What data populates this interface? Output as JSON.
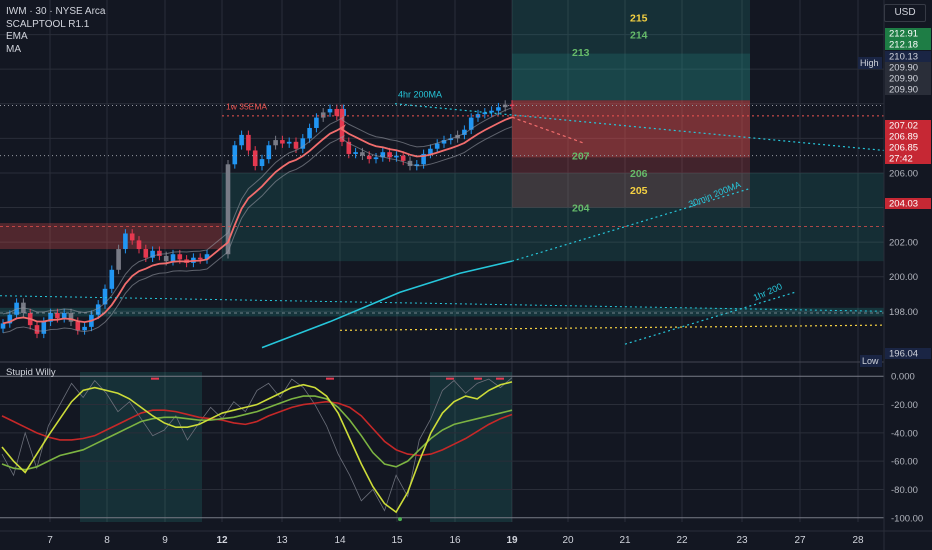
{
  "header": {
    "symbol_line": "IWM · 30 · NYSE Arca",
    "indicators": [
      "SCALPTOOL R1.1",
      "EMA",
      "MA"
    ],
    "currency_label": "USD"
  },
  "sub_panel": {
    "title": "Stupid Willy"
  },
  "colors": {
    "background": "#131722",
    "bull": "#2196f3",
    "bear": "#e53950",
    "neutral": "#787b86",
    "ema": "#f26d6d",
    "ma_cyan": "#26c6da",
    "zone_green": "#26a69a",
    "zone_red": "#ef5350",
    "osc_red": "#c62828",
    "osc_green": "#7cb342",
    "osc_lime": "#cddc39"
  },
  "chart_data": [
    {
      "type": "candlestick",
      "title": "IWM · 30 · NYSE Arca",
      "x_tick_labels": [
        "7",
        "8",
        "9",
        "12",
        "13",
        "14",
        "15",
        "16",
        "19",
        "20",
        "21",
        "22",
        "23",
        "27",
        "28"
      ],
      "y_tick_labels": [
        "198.00",
        "200.00",
        "202.00",
        "206.00"
      ],
      "ylim": [
        195.3,
        216.0
      ],
      "grid": true,
      "price_scale_labels": [
        {
          "text": "212.91",
          "value": 212.91,
          "style": "green"
        },
        {
          "text": "212.18",
          "value": 212.18,
          "style": "green"
        },
        {
          "text": "High",
          "value": 210.13,
          "style": "tag"
        },
        {
          "text": "210.13",
          "value": 210.13,
          "style": "navy"
        },
        {
          "text": "209.90",
          "value": 209.9,
          "style": "gray"
        },
        {
          "text": "209.90",
          "value": 209.9,
          "style": "gray"
        },
        {
          "text": "209.90",
          "value": 209.9,
          "style": "gray"
        },
        {
          "text": "207.02",
          "value": 207.02,
          "style": "red"
        },
        {
          "text": "206.89",
          "value": 206.89,
          "style": "red"
        },
        {
          "text": "206.85",
          "value": 206.85,
          "style": "red"
        },
        {
          "text": "27:42",
          "value": 206.85,
          "style": "red"
        },
        {
          "text": "204.03",
          "value": 204.03,
          "style": "red"
        },
        {
          "text": "Low",
          "value": 196.04,
          "style": "tag"
        },
        {
          "text": "196.04",
          "value": 196.04,
          "style": "navy"
        }
      ],
      "level_labels": [
        {
          "text": "215",
          "value": 215,
          "color": "#f5d142"
        },
        {
          "text": "214",
          "value": 214,
          "color": "#66bb6a"
        },
        {
          "text": "213",
          "value": 213,
          "color": "#66bb6a"
        },
        {
          "text": "207",
          "value": 207,
          "color": "#66bb6a"
        },
        {
          "text": "206",
          "value": 206,
          "color": "#66bb6a"
        },
        {
          "text": "205",
          "value": 205,
          "color": "#f5d142"
        },
        {
          "text": "204",
          "value": 204,
          "color": "#66bb6a"
        }
      ],
      "annotations": [
        {
          "text": "1w 35EMA",
          "color": "#ef5350"
        },
        {
          "text": "4hr 200MA",
          "color": "#26c6da"
        },
        {
          "text": "30min 200MA",
          "color": "#26c6da"
        },
        {
          "text": "1hr 200",
          "color": "#26c6da"
        }
      ],
      "path_points_close": [
        197.3,
        197.8,
        198.5,
        197.9,
        197.2,
        196.7,
        197.4,
        197.9,
        197.6,
        197.9,
        197.4,
        196.9,
        197.1,
        197.8,
        198.4,
        199.3,
        200.4,
        201.6,
        202.5,
        202.1,
        201.6,
        201.1,
        201.5,
        201.2,
        200.9,
        201.3,
        201.0,
        200.8,
        201.1,
        201.0,
        201.3,
        206.5,
        207.6,
        208.2,
        207.3,
        206.4,
        206.8,
        207.6,
        207.9,
        207.7,
        207.8,
        207.4,
        208.0,
        208.6,
        209.2,
        209.5,
        209.7,
        209.3,
        209.7,
        207.8,
        207.1,
        207.2,
        207.0,
        206.8,
        206.9,
        207.2,
        206.9,
        207.0,
        206.7,
        206.4,
        206.5,
        207.1,
        207.4,
        207.7,
        207.9,
        208.0,
        208.2,
        208.5,
        209.2,
        209.4,
        209.5,
        209.6,
        209.8,
        209.95,
        209.9
      ]
    },
    {
      "type": "line",
      "title": "Stupid Willy",
      "y_tick_labels": [
        "0.000",
        "-20.00",
        "-40.00",
        "-60.00",
        "-80.00",
        "-100.00"
      ],
      "ylim": [
        -103,
        3
      ],
      "series": [
        {
          "color": "#c62828",
          "values": [
            -28,
            -32,
            -36,
            -40,
            -43,
            -45,
            -45,
            -44,
            -42,
            -38,
            -34,
            -30,
            -26,
            -24,
            -24,
            -25,
            -27,
            -29,
            -30,
            -31,
            -33,
            -34,
            -32,
            -28,
            -25,
            -22,
            -20,
            -19,
            -18,
            -19,
            -22,
            -28,
            -37,
            -46,
            -52,
            -55,
            -56,
            -55,
            -52,
            -48,
            -44,
            -39,
            -34,
            -30,
            -27
          ]
        },
        {
          "color": "#7cb342",
          "values": [
            -62,
            -65,
            -66,
            -64,
            -60,
            -56,
            -54,
            -52,
            -48,
            -44,
            -40,
            -36,
            -32,
            -30,
            -29,
            -29,
            -30,
            -31,
            -31,
            -30,
            -29,
            -27,
            -25,
            -22,
            -19,
            -16,
            -14,
            -14,
            -16,
            -22,
            -31,
            -42,
            -54,
            -62,
            -64,
            -60,
            -52,
            -44,
            -38,
            -34,
            -32,
            -30,
            -28,
            -26,
            -24
          ]
        },
        {
          "color": "#cddc39",
          "values": [
            -50,
            -60,
            -68,
            -55,
            -42,
            -30,
            -18,
            -10,
            -8,
            -10,
            -12,
            -16,
            -22,
            -28,
            -33,
            -36,
            -36,
            -34,
            -30,
            -26,
            -24,
            -22,
            -20,
            -16,
            -12,
            -8,
            -6,
            -8,
            -14,
            -26,
            -44,
            -62,
            -78,
            -90,
            -96,
            -82,
            -60,
            -40,
            -26,
            -18,
            -14,
            -16,
            -10,
            -6,
            -4
          ]
        },
        {
          "color": "#6b6f7a",
          "values": [
            -55,
            -70,
            -40,
            -65,
            -35,
            -20,
            -5,
            -15,
            -3,
            -12,
            -25,
            -18,
            -30,
            -42,
            -38,
            -28,
            -45,
            -33,
            -22,
            -30,
            -18,
            -25,
            -10,
            -5,
            -15,
            -2,
            -8,
            -20,
            -35,
            -55,
            -70,
            -88,
            -80,
            -95,
            -70,
            -85,
            -45,
            -30,
            -10,
            -3,
            -12,
            -5,
            -2,
            -8,
            -1
          ]
        }
      ]
    }
  ]
}
